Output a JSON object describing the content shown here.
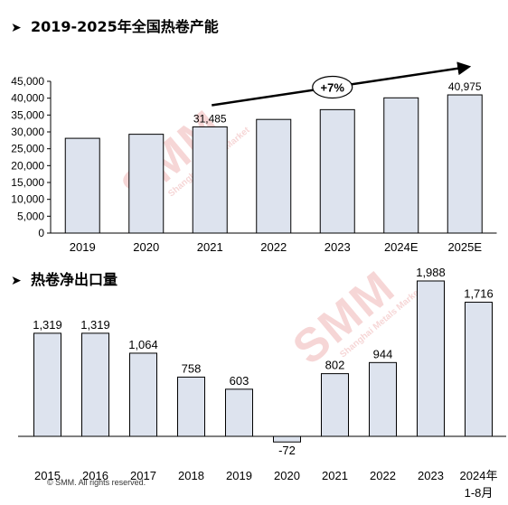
{
  "titles": {
    "top": "2019-2025年全国热卷产能",
    "bottom": "热卷净出口量",
    "bullet": "➤"
  },
  "footer": {
    "copyright": "© SMM. All rights reserved."
  },
  "watermark": {
    "main": "SMM",
    "sub": "Shanghai Metals Market"
  },
  "annotation": {
    "growth_label": "+7%"
  },
  "colors": {
    "bar_fill": "#dde3ee",
    "bar_stroke": "#000000",
    "watermark": "#d64646"
  },
  "chart_data": [
    {
      "type": "bar",
      "title": "2019-2025年全国热卷产能",
      "categories": [
        "2019",
        "2020",
        "2021",
        "2022",
        "2023",
        "2024E",
        "2025E"
      ],
      "values": [
        28100,
        29300,
        31485,
        33700,
        36600,
        40100,
        40975
      ],
      "data_labels": [
        null,
        null,
        "31,485",
        null,
        null,
        null,
        "40,975"
      ],
      "ylim": [
        0,
        45000
      ],
      "yticks": [
        0,
        5000,
        10000,
        15000,
        20000,
        25000,
        30000,
        35000,
        40000,
        45000
      ],
      "ytick_labels": [
        "0",
        "5,000",
        "10,000",
        "15,000",
        "20,000",
        "25,000",
        "30,000",
        "35,000",
        "40,000",
        "45,000"
      ],
      "grid": false,
      "annotation": "+7%"
    },
    {
      "type": "bar",
      "title": "热卷净出口量",
      "categories": [
        "2015",
        "2016",
        "2017",
        "2018",
        "2019",
        "2020",
        "2021",
        "2022",
        "2023",
        "2024年1-8月"
      ],
      "category_lines": [
        [
          "2015"
        ],
        [
          "2016"
        ],
        [
          "2017"
        ],
        [
          "2018"
        ],
        [
          "2019"
        ],
        [
          "2020"
        ],
        [
          "2021"
        ],
        [
          "2022"
        ],
        [
          "2023"
        ],
        [
          "2024年",
          "1-8月"
        ]
      ],
      "values": [
        1319,
        1319,
        1064,
        758,
        603,
        -72,
        802,
        944,
        1988,
        1716
      ],
      "data_labels": [
        "1,319",
        "1,319",
        "1,064",
        "758",
        "603",
        "-72",
        "802",
        "944",
        "1,988",
        "1,716"
      ],
      "grid": false
    }
  ]
}
